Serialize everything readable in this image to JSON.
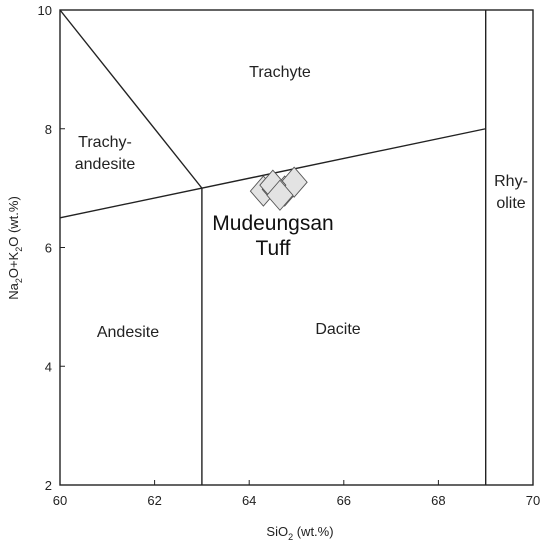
{
  "chart_data": {
    "type": "scatter",
    "title": "",
    "xlabel": {
      "main": "SiO",
      "sub": "2",
      "rest": " (wt.%)"
    },
    "ylabel": {
      "p1": "Na",
      "s1": "2",
      "p2": "O+K",
      "s2": "2",
      "p3": "O",
      "rest": " (wt.%)"
    },
    "xlim": [
      60,
      70
    ],
    "ylim": [
      2,
      10
    ],
    "xticks": [
      "60",
      "62",
      "64",
      "66",
      "68",
      "70"
    ],
    "yticks": [
      "2",
      "4",
      "6",
      "8",
      "10"
    ],
    "grid": false,
    "boundaries": [
      {
        "from": [
          60,
          10
        ],
        "to": [
          63,
          7
        ]
      },
      {
        "from": [
          60,
          6.5
        ],
        "to": [
          69,
          8
        ]
      },
      {
        "from": [
          63,
          2
        ],
        "to": [
          63,
          7
        ]
      },
      {
        "from": [
          69,
          2
        ],
        "to": [
          69,
          10
        ]
      }
    ],
    "fields": [
      {
        "name": "trachyte",
        "lines": [
          "Trachyte"
        ]
      },
      {
        "name": "trachyandesite",
        "lines": [
          "Trachy-",
          "andesite"
        ]
      },
      {
        "name": "rhyolite",
        "lines": [
          "Rhy-",
          "olite"
        ]
      },
      {
        "name": "andesite",
        "lines": [
          "Andesite"
        ]
      },
      {
        "name": "dacite",
        "lines": [
          "Dacite"
        ]
      }
    ],
    "annotation": {
      "lines": [
        "Mudeungsan",
        "Tuff"
      ]
    },
    "series": [
      {
        "marker": "diamond",
        "color": "#e3e3e3",
        "points": [
          {
            "x": 64.3,
            "y": 6.95
          },
          {
            "x": 64.55,
            "y": 6.98
          },
          {
            "x": 64.75,
            "y": 6.95
          },
          {
            "x": 64.95,
            "y": 7.1
          },
          {
            "x": 64.5,
            "y": 7.05
          },
          {
            "x": 64.65,
            "y": 6.88
          }
        ]
      }
    ]
  }
}
